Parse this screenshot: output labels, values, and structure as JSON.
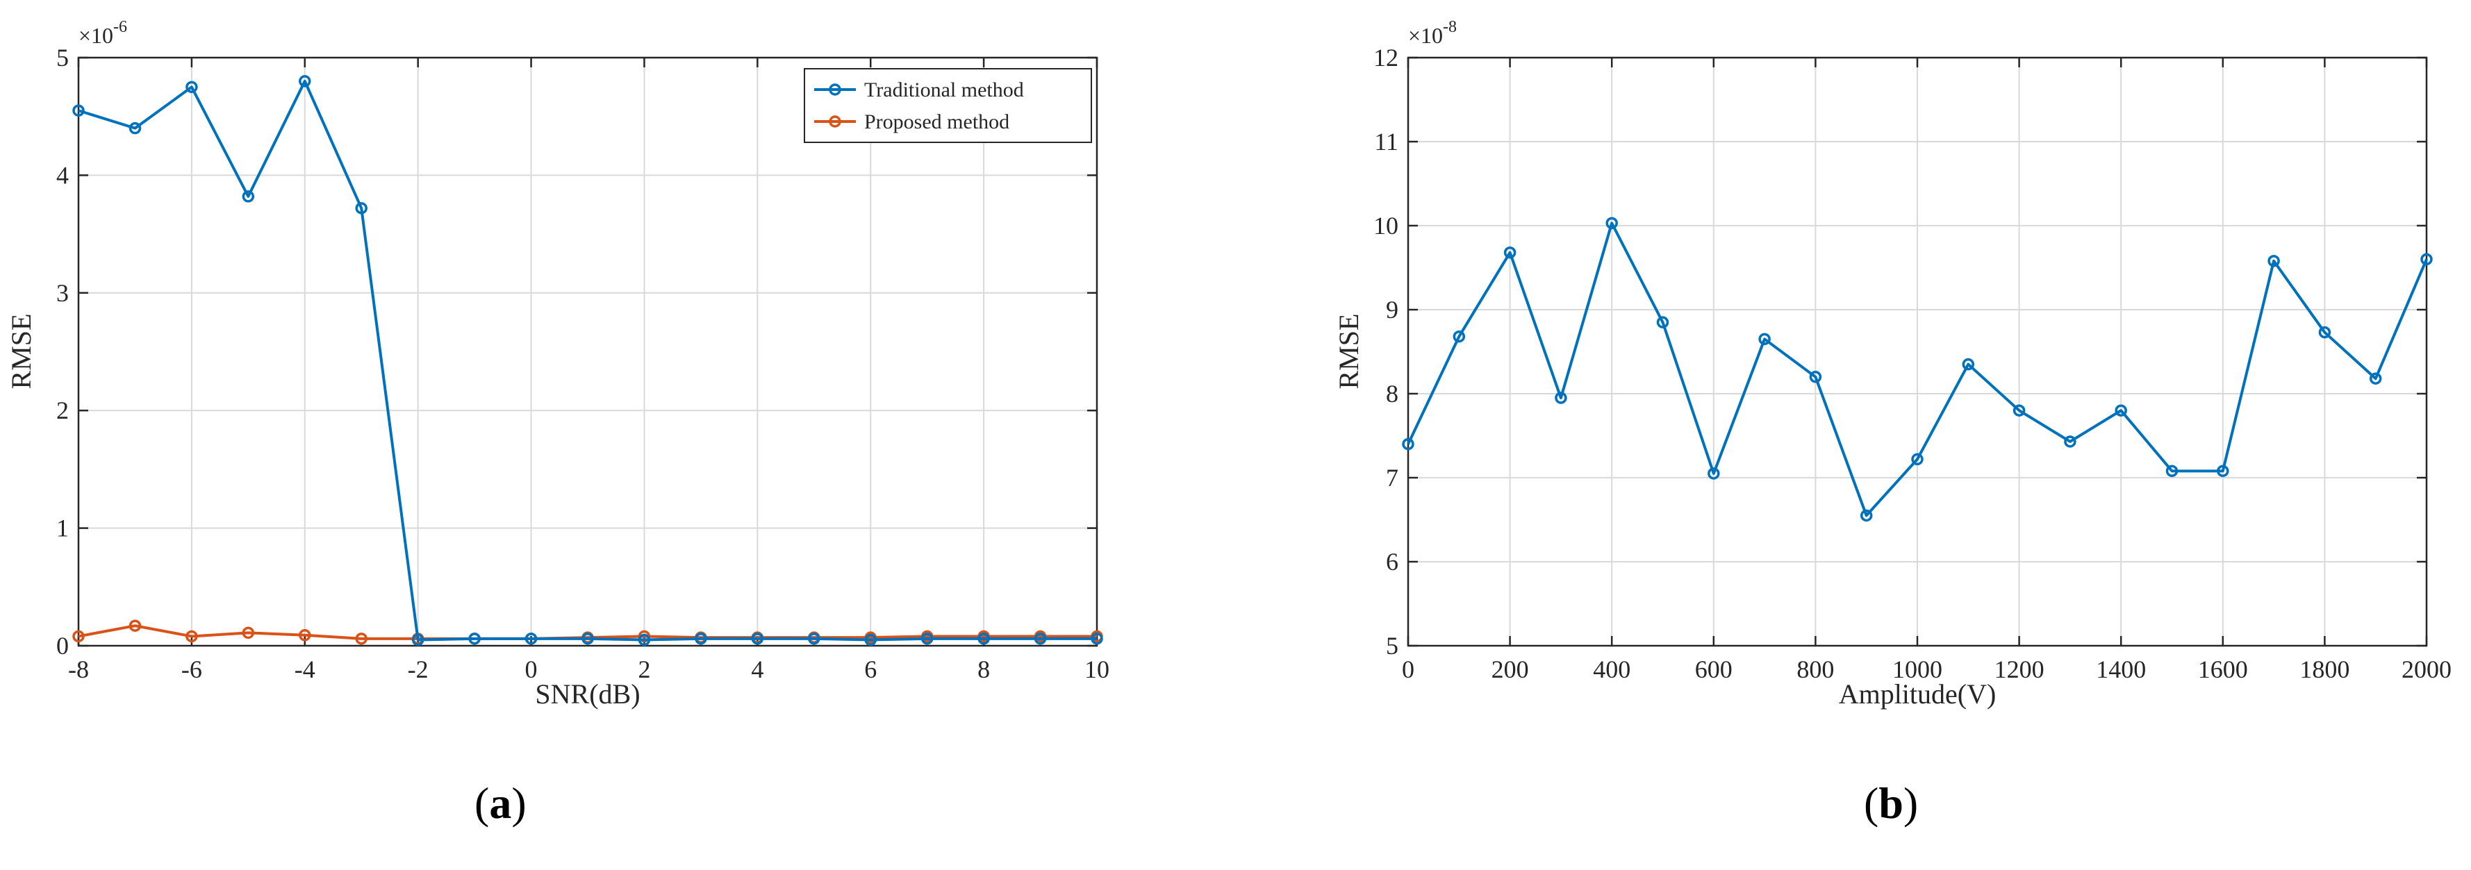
{
  "chart_data": [
    {
      "type": "line",
      "panel_label": "a",
      "xlabel": "SNR(dB)",
      "ylabel": "RMSE",
      "y_exponent": "-6",
      "xlim": [
        -8,
        10
      ],
      "ylim": [
        0,
        5
      ],
      "xticks": [
        -8,
        -6,
        -4,
        -2,
        0,
        2,
        4,
        6,
        8,
        10
      ],
      "yticks": [
        0,
        1,
        2,
        3,
        4,
        5
      ],
      "grid": true,
      "legend_position": "top-right",
      "x": [
        -8,
        -7,
        -6,
        -5,
        -4,
        -3,
        -2,
        -1,
        0,
        1,
        2,
        3,
        4,
        5,
        6,
        7,
        8,
        9,
        10
      ],
      "series": [
        {
          "name": "Traditional method",
          "color": "#0072BD",
          "values": [
            4.55,
            4.4,
            4.75,
            3.82,
            4.8,
            3.72,
            0.05,
            0.06,
            0.06,
            0.06,
            0.05,
            0.06,
            0.06,
            0.06,
            0.05,
            0.06,
            0.06,
            0.06,
            0.06
          ]
        },
        {
          "name": "Proposed method",
          "color": "#D95319",
          "values": [
            0.08,
            0.17,
            0.08,
            0.11,
            0.09,
            0.06,
            0.06,
            0.06,
            0.06,
            0.07,
            0.08,
            0.07,
            0.07,
            0.07,
            0.07,
            0.08,
            0.08,
            0.08,
            0.08
          ]
        }
      ]
    },
    {
      "type": "line",
      "panel_label": "b",
      "xlabel": "Amplitude(V)",
      "ylabel": "RMSE",
      "y_exponent": "-8",
      "xlim": [
        0,
        2000
      ],
      "ylim": [
        5,
        12
      ],
      "xticks": [
        0,
        200,
        400,
        600,
        800,
        1000,
        1200,
        1400,
        1600,
        1800,
        2000
      ],
      "yticks": [
        5,
        6,
        7,
        8,
        9,
        10,
        11,
        12
      ],
      "grid": true,
      "x": [
        0,
        100,
        200,
        300,
        400,
        500,
        600,
        700,
        800,
        900,
        1000,
        1100,
        1200,
        1300,
        1400,
        1500,
        1600,
        1700,
        1800,
        1900,
        2000
      ],
      "series": [
        {
          "color": "#0072BD",
          "values": [
            7.4,
            8.68,
            9.68,
            7.95,
            10.03,
            8.85,
            7.05,
            8.65,
            8.2,
            6.55,
            7.22,
            8.35,
            7.8,
            7.43,
            7.8,
            7.08,
            7.08,
            9.58,
            8.73,
            8.18,
            9.6
          ]
        }
      ]
    }
  ]
}
